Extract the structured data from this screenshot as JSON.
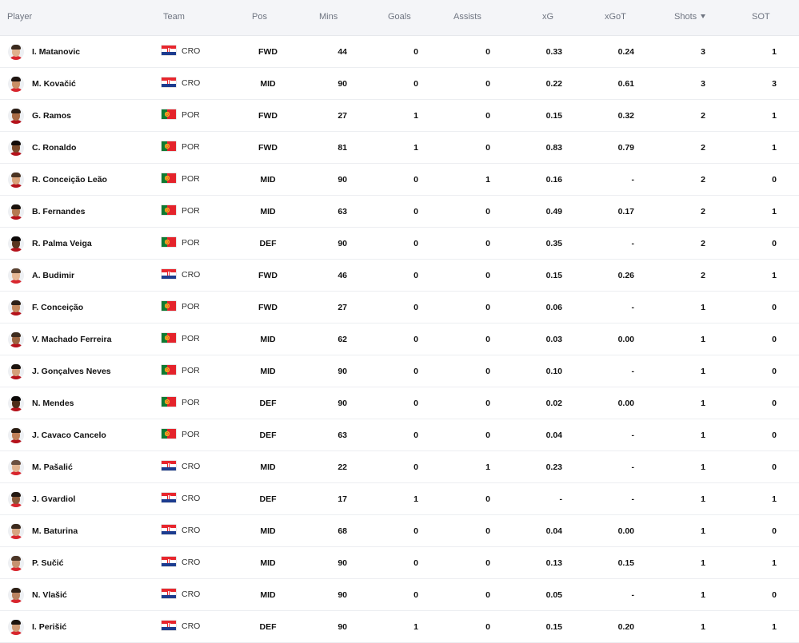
{
  "columns": {
    "player": "Player",
    "team": "Team",
    "pos": "Pos",
    "mins": "Mins",
    "goals": "Goals",
    "assists": "Assists",
    "xg": "xG",
    "xgot": "xGoT",
    "shots": "Shots",
    "sot": "SOT"
  },
  "sort": {
    "column": "shots",
    "direction": "descending",
    "icon": "sort-down-icon"
  },
  "colors": {
    "header_bg": "#f4f5f8",
    "row_border": "#eceef1",
    "text": "#111111",
    "header_text": "#6e7480",
    "cro_red": "#e8262d",
    "cro_blue": "#1c3c8f",
    "por_green": "#0f7a32",
    "por_red": "#e4232b"
  },
  "rows": [
    {
      "player": "I. Matanovic",
      "team": "CRO",
      "pos": "FWD",
      "mins": "44",
      "goals": "0",
      "assists": "0",
      "xg": "0.33",
      "xgot": "0.24",
      "shots": "3",
      "sot": "1"
    },
    {
      "player": "M. Kovačić",
      "team": "CRO",
      "pos": "MID",
      "mins": "90",
      "goals": "0",
      "assists": "0",
      "xg": "0.22",
      "xgot": "0.61",
      "shots": "3",
      "sot": "3"
    },
    {
      "player": "G. Ramos",
      "team": "POR",
      "pos": "FWD",
      "mins": "27",
      "goals": "1",
      "assists": "0",
      "xg": "0.15",
      "xgot": "0.32",
      "shots": "2",
      "sot": "1"
    },
    {
      "player": "C. Ronaldo",
      "team": "POR",
      "pos": "FWD",
      "mins": "81",
      "goals": "1",
      "assists": "0",
      "xg": "0.83",
      "xgot": "0.79",
      "shots": "2",
      "sot": "1"
    },
    {
      "player": "R. Conceição Leão",
      "team": "POR",
      "pos": "MID",
      "mins": "90",
      "goals": "0",
      "assists": "1",
      "xg": "0.16",
      "xgot": "-",
      "shots": "2",
      "sot": "0"
    },
    {
      "player": "B. Fernandes",
      "team": "POR",
      "pos": "MID",
      "mins": "63",
      "goals": "0",
      "assists": "0",
      "xg": "0.49",
      "xgot": "0.17",
      "shots": "2",
      "sot": "1"
    },
    {
      "player": "R. Palma Veiga",
      "team": "POR",
      "pos": "DEF",
      "mins": "90",
      "goals": "0",
      "assists": "0",
      "xg": "0.35",
      "xgot": "-",
      "shots": "2",
      "sot": "0"
    },
    {
      "player": "A. Budimir",
      "team": "CRO",
      "pos": "FWD",
      "mins": "46",
      "goals": "0",
      "assists": "0",
      "xg": "0.15",
      "xgot": "0.26",
      "shots": "2",
      "sot": "1"
    },
    {
      "player": "F. Conceição",
      "team": "POR",
      "pos": "FWD",
      "mins": "27",
      "goals": "0",
      "assists": "0",
      "xg": "0.06",
      "xgot": "-",
      "shots": "1",
      "sot": "0"
    },
    {
      "player": "V. Machado Ferreira",
      "team": "POR",
      "pos": "MID",
      "mins": "62",
      "goals": "0",
      "assists": "0",
      "xg": "0.03",
      "xgot": "0.00",
      "shots": "1",
      "sot": "0"
    },
    {
      "player": "J. Gonçalves Neves",
      "team": "POR",
      "pos": "MID",
      "mins": "90",
      "goals": "0",
      "assists": "0",
      "xg": "0.10",
      "xgot": "-",
      "shots": "1",
      "sot": "0"
    },
    {
      "player": "N. Mendes",
      "team": "POR",
      "pos": "DEF",
      "mins": "90",
      "goals": "0",
      "assists": "0",
      "xg": "0.02",
      "xgot": "0.00",
      "shots": "1",
      "sot": "0"
    },
    {
      "player": "J. Cavaco Cancelo",
      "team": "POR",
      "pos": "DEF",
      "mins": "63",
      "goals": "0",
      "assists": "0",
      "xg": "0.04",
      "xgot": "-",
      "shots": "1",
      "sot": "0"
    },
    {
      "player": "M. Pašalić",
      "team": "CRO",
      "pos": "MID",
      "mins": "22",
      "goals": "0",
      "assists": "1",
      "xg": "0.23",
      "xgot": "-",
      "shots": "1",
      "sot": "0"
    },
    {
      "player": "J. Gvardiol",
      "team": "CRO",
      "pos": "DEF",
      "mins": "17",
      "goals": "1",
      "assists": "0",
      "xg": "-",
      "xgot": "-",
      "shots": "1",
      "sot": "1"
    },
    {
      "player": "M. Baturina",
      "team": "CRO",
      "pos": "MID",
      "mins": "68",
      "goals": "0",
      "assists": "0",
      "xg": "0.04",
      "xgot": "0.00",
      "shots": "1",
      "sot": "0"
    },
    {
      "player": "P. Sučić",
      "team": "CRO",
      "pos": "MID",
      "mins": "90",
      "goals": "0",
      "assists": "0",
      "xg": "0.13",
      "xgot": "0.15",
      "shots": "1",
      "sot": "1"
    },
    {
      "player": "N. Vlašić",
      "team": "CRO",
      "pos": "MID",
      "mins": "90",
      "goals": "0",
      "assists": "0",
      "xg": "0.05",
      "xgot": "-",
      "shots": "1",
      "sot": "0"
    },
    {
      "player": "I. Perišić",
      "team": "CRO",
      "pos": "DEF",
      "mins": "90",
      "goals": "1",
      "assists": "0",
      "xg": "0.15",
      "xgot": "0.20",
      "shots": "1",
      "sot": "1"
    }
  ]
}
